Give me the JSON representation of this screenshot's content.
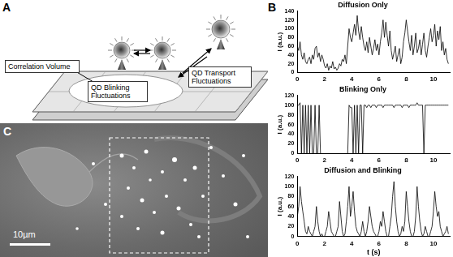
{
  "diagram": {
    "panel": "A",
    "labels": [
      "Correlation Volume",
      "QD Blinking Fluctuations",
      "QD Transport Fluctuations"
    ]
  },
  "charts_panel": "B",
  "chart_data": [
    {
      "type": "line",
      "title": "Diffusion Only",
      "y_label": "I (a.u.)",
      "color": "#000000",
      "grid": false,
      "xlim": [
        0,
        11.2
      ],
      "xticks": [
        0,
        2,
        4,
        6,
        8,
        10
      ],
      "ylim": [
        0,
        140
      ],
      "yticks": [
        0,
        20,
        40,
        60,
        80,
        100,
        120,
        140
      ],
      "x": [
        0,
        0.1,
        0.2,
        0.3,
        0.4,
        0.5,
        0.6,
        0.7,
        0.8,
        0.9,
        1,
        1.1,
        1.2,
        1.3,
        1.4,
        1.5,
        1.6,
        1.7,
        1.8,
        1.9,
        2,
        2.1,
        2.2,
        2.3,
        2.4,
        2.5,
        2.6,
        2.7,
        2.8,
        2.9,
        3,
        3.1,
        3.2,
        3.3,
        3.4,
        3.5,
        3.6,
        3.7,
        3.8,
        3.9,
        4,
        4.1,
        4.2,
        4.3,
        4.4,
        4.5,
        4.6,
        4.7,
        4.8,
        4.9,
        5,
        5.1,
        5.2,
        5.3,
        5.4,
        5.5,
        5.6,
        5.7,
        5.8,
        5.9,
        6,
        6.1,
        6.2,
        6.3,
        6.4,
        6.5,
        6.6,
        6.7,
        6.8,
        6.9,
        7,
        7.1,
        7.2,
        7.3,
        7.4,
        7.5,
        7.6,
        7.7,
        7.8,
        7.9,
        8,
        8.1,
        8.2,
        8.3,
        8.4,
        8.5,
        8.6,
        8.7,
        8.8,
        8.9,
        9,
        9.1,
        9.2,
        9.3,
        9.4,
        9.5,
        9.6,
        9.7,
        9.8,
        9.9,
        10,
        10.1,
        10.2,
        10.3,
        10.4,
        10.5,
        10.6,
        10.7,
        10.8,
        10.9,
        11,
        11.1
      ],
      "values": [
        60,
        50,
        70,
        40,
        30,
        45,
        25,
        20,
        30,
        35,
        20,
        40,
        30,
        55,
        60,
        35,
        45,
        25,
        40,
        30,
        15,
        10,
        20,
        5,
        15,
        10,
        25,
        8,
        12,
        5,
        10,
        20,
        15,
        30,
        25,
        40,
        20,
        60,
        100,
        80,
        70,
        90,
        110,
        85,
        130,
        95,
        75,
        105,
        80,
        60,
        50,
        70,
        45,
        80,
        60,
        40,
        55,
        75,
        50,
        65,
        40,
        70,
        90,
        120,
        80,
        115,
        85,
        60,
        95,
        50,
        30,
        45,
        60,
        25,
        40,
        55,
        20,
        35,
        70,
        90,
        120,
        95,
        70,
        50,
        85,
        40,
        60,
        90,
        45,
        55,
        75,
        40,
        65,
        90,
        50,
        35,
        60,
        80,
        100,
        70,
        85,
        110,
        60,
        95,
        75,
        105,
        50,
        70,
        40,
        55,
        30,
        20
      ]
    },
    {
      "type": "line",
      "title": "Blinking Only",
      "y_label": "I (a.u.)",
      "color": "#000000",
      "grid": false,
      "xlim": [
        0,
        11.2
      ],
      "xticks": [
        0,
        2,
        4,
        6,
        8,
        10
      ],
      "ylim": [
        0,
        120
      ],
      "yticks": [
        0,
        20,
        40,
        60,
        80,
        100,
        120
      ],
      "x": [
        0,
        0.1,
        0.2,
        0.3,
        0.4,
        0.5,
        0.6,
        0.7,
        0.8,
        0.9,
        1,
        1.1,
        1.2,
        1.3,
        1.4,
        1.5,
        1.6,
        1.7,
        1.8,
        1.9,
        2,
        2.1,
        2.2,
        2.3,
        2.4,
        2.5,
        2.6,
        2.7,
        2.8,
        2.9,
        3,
        3.1,
        3.2,
        3.3,
        3.4,
        3.5,
        3.6,
        3.7,
        3.8,
        3.9,
        4,
        4.1,
        4.2,
        4.3,
        4.4,
        4.5,
        4.6,
        4.7,
        4.8,
        4.9,
        5,
        5.1,
        5.2,
        5.3,
        5.4,
        5.5,
        5.6,
        5.7,
        5.8,
        5.9,
        6,
        6.1,
        6.2,
        6.3,
        6.4,
        6.5,
        6.6,
        6.7,
        6.8,
        6.9,
        7,
        7.1,
        7.2,
        7.3,
        7.4,
        7.5,
        7.6,
        7.7,
        7.8,
        7.9,
        8,
        8.1,
        8.2,
        8.3,
        8.4,
        8.5,
        8.6,
        8.7,
        8.8,
        8.9,
        9,
        9.1,
        9.2,
        9.3,
        9.4,
        9.5,
        9.6,
        9.7,
        9.8,
        9.9,
        10,
        10.1,
        10.2,
        10.3,
        10.4,
        10.5,
        10.6,
        10.7,
        10.8,
        10.9,
        11,
        11.1
      ],
      "values": [
        100,
        100,
        105,
        0,
        100,
        0,
        100,
        0,
        100,
        0,
        100,
        0,
        0,
        100,
        0,
        0,
        100,
        0,
        0,
        0,
        0,
        0,
        0,
        0,
        0,
        0,
        0,
        0,
        0,
        0,
        0,
        0,
        0,
        0,
        0,
        0,
        0,
        0,
        100,
        95,
        95,
        0,
        100,
        0,
        100,
        0,
        100,
        100,
        0,
        100,
        100,
        95,
        100,
        100,
        95,
        100,
        100,
        100,
        95,
        100,
        100,
        100,
        100,
        95,
        100,
        100,
        100,
        100,
        100,
        100,
        100,
        95,
        100,
        100,
        100,
        100,
        100,
        95,
        100,
        100,
        100,
        100,
        95,
        100,
        100,
        100,
        100,
        100,
        105,
        100,
        100,
        100,
        100,
        0,
        100,
        100,
        100,
        100,
        100,
        100,
        100,
        100,
        100,
        100,
        100,
        100,
        100,
        100,
        100,
        100,
        100,
        100
      ]
    },
    {
      "type": "line",
      "title": "Diffusion and Blinking",
      "y_label": "I (a.u.)",
      "x_label": "t (s)",
      "color": "#000000",
      "grid": false,
      "xlim": [
        0,
        11.2
      ],
      "xticks": [
        0,
        2,
        4,
        6,
        8,
        10
      ],
      "ylim": [
        0,
        120
      ],
      "yticks": [
        0,
        20,
        40,
        60,
        80,
        100,
        120
      ],
      "x": [
        0,
        0.1,
        0.2,
        0.3,
        0.4,
        0.5,
        0.6,
        0.7,
        0.8,
        0.9,
        1,
        1.1,
        1.2,
        1.3,
        1.4,
        1.5,
        1.6,
        1.7,
        1.8,
        1.9,
        2,
        2.1,
        2.2,
        2.3,
        2.4,
        2.5,
        2.6,
        2.7,
        2.8,
        2.9,
        3,
        3.1,
        3.2,
        3.3,
        3.4,
        3.5,
        3.6,
        3.7,
        3.8,
        3.9,
        4,
        4.1,
        4.2,
        4.3,
        4.4,
        4.5,
        4.6,
        4.7,
        4.8,
        4.9,
        5,
        5.1,
        5.2,
        5.3,
        5.4,
        5.5,
        5.6,
        5.7,
        5.8,
        5.9,
        6,
        6.1,
        6.2,
        6.3,
        6.4,
        6.5,
        6.6,
        6.7,
        6.8,
        6.9,
        7,
        7.1,
        7.2,
        7.3,
        7.4,
        7.5,
        7.6,
        7.7,
        7.8,
        7.9,
        8,
        8.1,
        8.2,
        8.3,
        8.4,
        8.5,
        8.6,
        8.7,
        8.8,
        8.9,
        9,
        9.1,
        9.2,
        9.3,
        9.4,
        9.5,
        9.6,
        9.7,
        9.8,
        9.9,
        10,
        10.1,
        10.2,
        10.3,
        10.4,
        10.5,
        10.6,
        10.7,
        10.8,
        10.9,
        11,
        11.1
      ],
      "values": [
        40,
        60,
        100,
        70,
        50,
        30,
        10,
        5,
        20,
        10,
        5,
        0,
        10,
        20,
        60,
        30,
        10,
        0,
        5,
        0,
        0,
        10,
        20,
        50,
        30,
        10,
        5,
        0,
        0,
        10,
        20,
        70,
        40,
        10,
        0,
        5,
        30,
        60,
        100,
        40,
        60,
        90,
        50,
        20,
        10,
        5,
        0,
        10,
        30,
        10,
        0,
        10,
        30,
        60,
        40,
        20,
        10,
        5,
        0,
        0,
        10,
        30,
        20,
        50,
        30,
        10,
        0,
        0,
        20,
        40,
        80,
        110,
        60,
        30,
        10,
        0,
        5,
        20,
        10,
        30,
        90,
        60,
        30,
        10,
        0,
        0,
        10,
        40,
        100,
        60,
        30,
        10,
        0,
        5,
        20,
        10,
        0,
        0,
        10,
        20,
        50,
        90,
        60,
        40,
        50,
        20,
        10,
        0,
        5,
        10,
        20,
        5
      ]
    }
  ],
  "image": {
    "panel": "C",
    "scale_bar_label": "10µm"
  }
}
